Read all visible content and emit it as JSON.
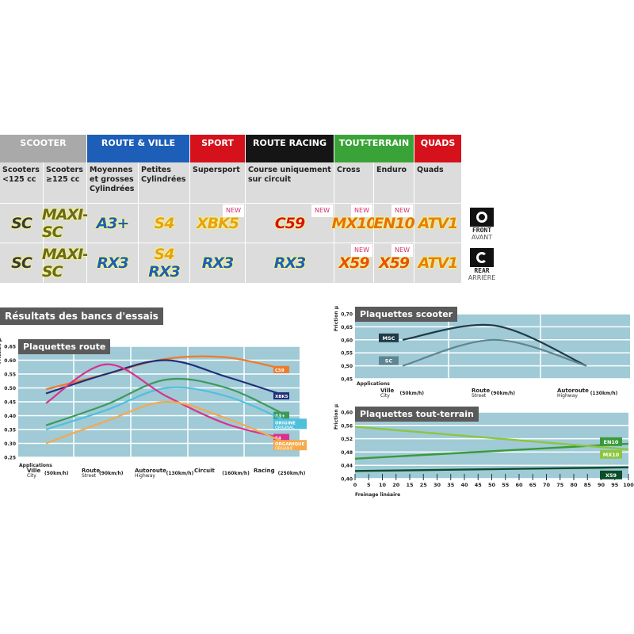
{
  "categories": [
    {
      "label": "SCOOTER",
      "color": "#a9a9a9"
    },
    {
      "label": "ROUTE & VILLE",
      "color": "#1d5fb8"
    },
    {
      "label": "SPORT",
      "color": "#d5121c"
    },
    {
      "label": "ROUTE RACING",
      "color": "#151515"
    },
    {
      "label": "TOUT-TERRAIN",
      "color": "#3aa338"
    },
    {
      "label": "QUADS",
      "color": "#d5121c"
    }
  ],
  "columns": [
    {
      "desc": "Scooters <125 cc",
      "front": "SC",
      "rear": "SC"
    },
    {
      "desc": "Scooters ≥125 cc",
      "front": "MAXI-SC",
      "rear": "MAXI-SC"
    },
    {
      "desc": "Moyennes et grosses Cylindrées",
      "front": "A3+",
      "rear": "RX3"
    },
    {
      "desc": "Petites Cylindrées",
      "front": "S4",
      "rear": "S4",
      "rear2": "RX3"
    },
    {
      "desc": "Supersport",
      "front": "XBK5",
      "front_new": "NEW",
      "rear": "RX3"
    },
    {
      "desc": "Course uniquement sur circuit",
      "front": "C59",
      "front_new": "NEW",
      "rear": "RX3"
    },
    {
      "desc": "Cross",
      "front": "MX10",
      "front_new": "NEW",
      "rear": "X59",
      "rear_new": "NEW"
    },
    {
      "desc": "Enduro",
      "front": "EN10",
      "front_new": "NEW",
      "rear": "X59",
      "rear_new": "NEW"
    },
    {
      "desc": "Quads",
      "front": "ATV1",
      "rear": "ATV1"
    }
  ],
  "front": {
    "label": "FRONT",
    "sub": "AVANT",
    "icon": "front-wheel-icon"
  },
  "rear": {
    "label": "REAR",
    "sub": "ARRIÈRE",
    "icon": "rear-wheel-icon"
  },
  "section_title": "Résultats des bancs d'essais",
  "chart_data": [
    {
      "type": "line",
      "title": "Plaquettes route",
      "ylabel": "Friction μ",
      "ylim": [
        0.25,
        0.65
      ],
      "yticks": [
        "0.65",
        "0.60",
        "0.55",
        "0.50",
        "0.45",
        "0.40",
        "0.35",
        "0.30",
        "0.25"
      ],
      "xlabel": "Applications",
      "categories": [
        {
          "a": "Ville",
          "b": "City",
          "s": "(50km/h)"
        },
        {
          "a": "Route",
          "b": "Street",
          "s": "(90km/h)"
        },
        {
          "a": "Autoroute",
          "b": "Highway",
          "s": "(130km/h)"
        },
        {
          "a": "Circuit",
          "b": "",
          "s": "(160km/h)"
        },
        {
          "a": "Racing",
          "b": "",
          "s": "(250km/h)"
        }
      ],
      "grid": true,
      "series": [
        {
          "name": "C59",
          "color": "#f07a2a",
          "values": [
            0.495,
            0.55,
            0.605,
            0.61,
            0.565
          ]
        },
        {
          "name": "XBK5",
          "color": "#1f2f7a",
          "values": [
            0.48,
            0.55,
            0.6,
            0.54,
            0.47
          ]
        },
        {
          "name": "A3+",
          "color": "#3c9a5a",
          "values": [
            0.365,
            0.44,
            0.53,
            0.5,
            0.4
          ]
        },
        {
          "name": "ORIGINE",
          "name2": "ORIGINAL",
          "color": "#4fc0dc",
          "values": [
            0.35,
            0.42,
            0.5,
            0.47,
            0.38
          ]
        },
        {
          "name": "S4",
          "color": "#d9318f",
          "values": [
            0.445,
            0.585,
            0.47,
            0.37,
            0.315
          ]
        },
        {
          "name": "ORGANIQUE",
          "name2": "ORGANIC",
          "color": "#f6a94a",
          "values": [
            0.3,
            0.38,
            0.45,
            0.39,
            0.3
          ]
        }
      ]
    },
    {
      "type": "line",
      "title": "Plaquettes scooter",
      "ylabel": "Friction μ",
      "ylim": [
        0.45,
        0.7
      ],
      "yticks": [
        "0,70",
        "0,65",
        "0,60",
        "0,55",
        "0,50",
        "0,45"
      ],
      "xlabel": "Applications",
      "categories": [
        {
          "a": "Ville",
          "b": "City",
          "s": "(50km/h)"
        },
        {
          "a": "Route",
          "b": "Street",
          "s": "(90km/h)"
        },
        {
          "a": "Autoroute",
          "b": "Highway",
          "s": "(130km/h)"
        }
      ],
      "grid": true,
      "series": [
        {
          "name": "MSC",
          "color": "#1f3a48",
          "values": [
            0.6,
            0.655,
            0.5
          ]
        },
        {
          "name": "SC",
          "color": "#5e8592",
          "values": [
            0.5,
            0.6,
            0.5
          ]
        }
      ]
    },
    {
      "type": "line",
      "title": "Plaquettes tout-terrain",
      "ylabel": "Friction μ",
      "ylim": [
        0.4,
        0.6
      ],
      "yticks": [
        "0,60",
        "0,56",
        "0,52",
        "0,48",
        "0,44",
        "0,40"
      ],
      "xlabel": "Freinage linéaire",
      "xlim": [
        0,
        100
      ],
      "xticks": [
        "0",
        "5",
        "10",
        "20",
        "15",
        "25",
        "30",
        "35",
        "40",
        "45",
        "50",
        "55",
        "60",
        "65",
        "70",
        "75",
        "80",
        "85",
        "90",
        "95",
        "100"
      ],
      "grid": true,
      "series": [
        {
          "name": "EN10",
          "color": "#3a9a3a",
          "x": [
            0,
            100
          ],
          "values": [
            0.46,
            0.505
          ]
        },
        {
          "name": "MX10",
          "color": "#8cc63f",
          "x": [
            0,
            100
          ],
          "values": [
            0.556,
            0.488
          ]
        },
        {
          "name": "X59",
          "color": "#0d4d2a",
          "x": [
            0,
            100
          ],
          "values": [
            0.423,
            0.434
          ]
        }
      ]
    }
  ]
}
